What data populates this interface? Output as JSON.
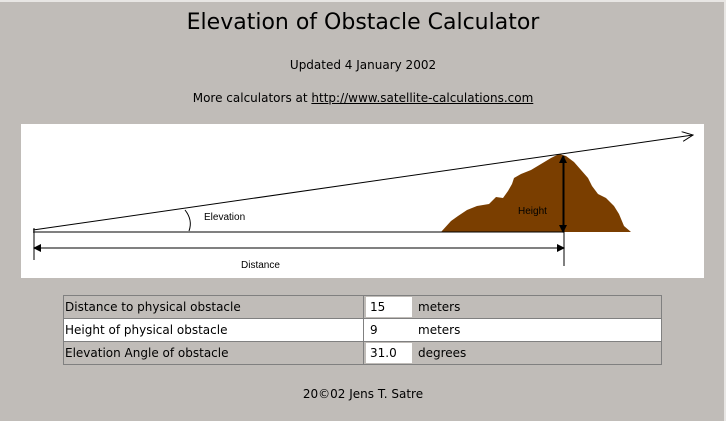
{
  "page": {
    "title": "Elevation of Obstacle Calculator",
    "updated": "Updated 4 January 2002",
    "more_prefix": "More calculators at ",
    "more_link": "http://www.satellite-calculations.com"
  },
  "diagram": {
    "elevation_label": "Elevation",
    "height_label": "Height",
    "distance_label": "Distance",
    "obstacle_color": "#7a3e00"
  },
  "form": {
    "rows": [
      {
        "label": "Distance to physical obstacle",
        "value": "15",
        "unit": "meters"
      },
      {
        "label": "Height of physical obstacle",
        "value": "9",
        "unit": "meters"
      },
      {
        "label": "Elevation Angle of obstacle",
        "value": "31.0",
        "unit": "degrees"
      }
    ]
  },
  "footer": {
    "text": "20©02 Jens T. Satre"
  }
}
